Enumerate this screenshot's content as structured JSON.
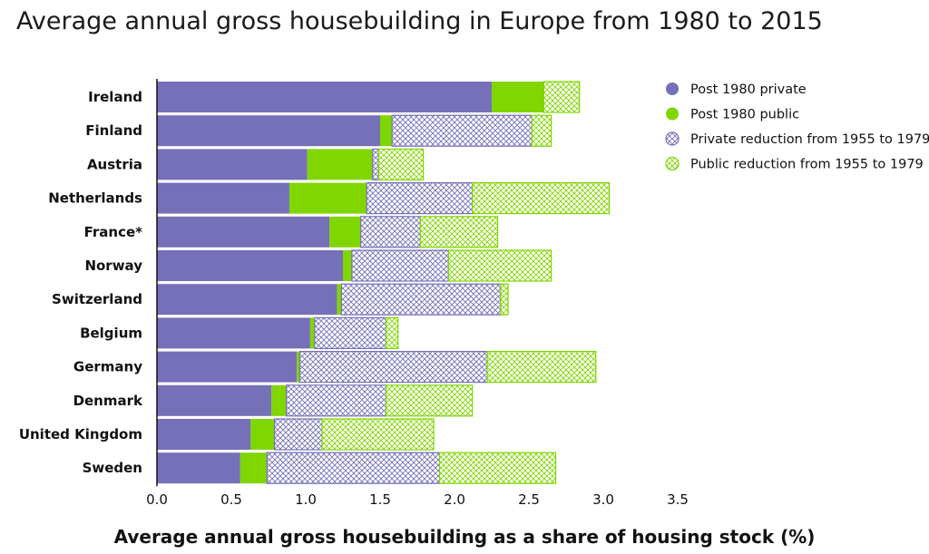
{
  "chart_data": {
    "type": "bar",
    "orientation": "horizontal",
    "stacked": true,
    "title": "Average annual gross housebuilding in Europe from 1980 to 2015",
    "xlabel": "Average annual gross housebuilding as a share of housing stock (%)",
    "ylabel": "",
    "xlim": [
      0,
      3.5
    ],
    "xticks": [
      "0.0",
      "0.5",
      "1.0",
      "1.5",
      "2.0",
      "2.5",
      "3.0",
      "3.5"
    ],
    "grid": false,
    "legend_position": "top-right",
    "categories": [
      "Ireland",
      "Finland",
      "Austria",
      "Netherlands",
      "France*",
      "Norway",
      "Switzerland",
      "Belgium",
      "Germany",
      "Denmark",
      "United Kingdom",
      "Sweden"
    ],
    "series": [
      {
        "name": "Post 1980 private",
        "color": "#7570b8",
        "pattern": "solid",
        "values": [
          2.25,
          1.5,
          1.01,
          0.89,
          1.16,
          1.25,
          1.21,
          1.03,
          0.94,
          0.77,
          0.63,
          0.56
        ]
      },
      {
        "name": "Post 1980 public",
        "color": "#7fd600",
        "pattern": "solid",
        "values": [
          0.35,
          0.08,
          0.44,
          0.52,
          0.21,
          0.06,
          0.03,
          0.03,
          0.02,
          0.1,
          0.16,
          0.18
        ]
      },
      {
        "name": "Private reduction from 1955 to 1979",
        "color": "#7570b8",
        "pattern": "hatch",
        "values": [
          0.0,
          0.94,
          0.04,
          0.71,
          0.4,
          0.65,
          1.07,
          0.48,
          1.26,
          0.67,
          0.32,
          1.16
        ]
      },
      {
        "name": "Public reduction from 1955 to 1979",
        "color": "#7fd600",
        "pattern": "hatch",
        "values": [
          0.24,
          0.13,
          0.3,
          0.92,
          0.52,
          0.69,
          0.05,
          0.08,
          0.73,
          0.58,
          0.75,
          0.78
        ]
      }
    ]
  }
}
